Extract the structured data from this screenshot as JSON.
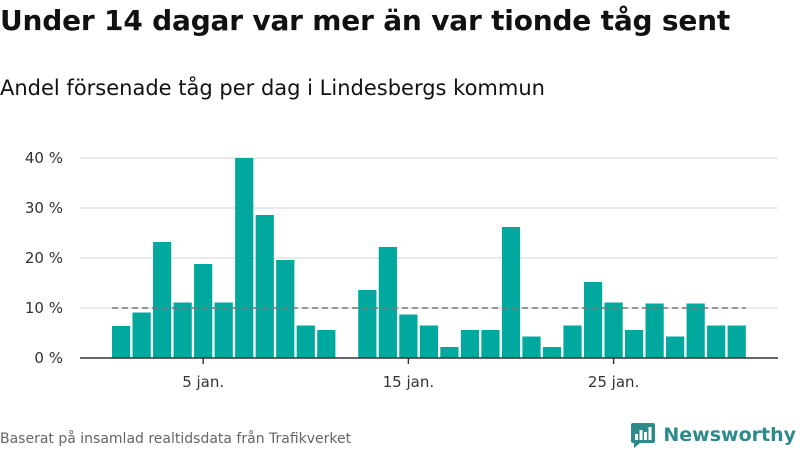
{
  "header": {
    "title": "Under 14 dagar var mer än var tionde tåg sent",
    "subtitle": "Andel försenade tåg per dag i Lindesbergs kommun"
  },
  "footer": {
    "source": "Baserat på insamlad realtidsdata från Trafikverket",
    "brand": "Newsworthy"
  },
  "colors": {
    "bar": "#00a89d",
    "reference_line": "#777777",
    "grid": "#dddddd",
    "axis": "#333333",
    "brand": "#2e8b8b"
  },
  "icons": {
    "brand_logo": "newsworthy-logo-icon"
  },
  "chart_data": {
    "type": "bar",
    "unit": "%",
    "ylim": [
      0,
      40
    ],
    "y_ticks": [
      {
        "value": 0,
        "label": "0 %"
      },
      {
        "value": 10,
        "label": "10 %"
      },
      {
        "value": 20,
        "label": "20 %"
      },
      {
        "value": 30,
        "label": "30 %"
      },
      {
        "value": 40,
        "label": "40 %"
      }
    ],
    "x_ticks": [
      {
        "day": 5,
        "label": "5 jan."
      },
      {
        "day": 15,
        "label": "15 jan."
      },
      {
        "day": 25,
        "label": "25 jan."
      }
    ],
    "days": [
      1,
      2,
      3,
      4,
      5,
      6,
      7,
      8,
      9,
      10,
      11,
      12,
      13,
      14,
      15,
      16,
      17,
      18,
      19,
      20,
      21,
      22,
      23,
      24,
      25,
      26,
      27,
      28,
      29,
      30,
      31,
      32
    ],
    "values": [
      6.4,
      9.1,
      23.2,
      11.1,
      18.8,
      11.1,
      40.0,
      28.6,
      19.6,
      6.5,
      5.6,
      null,
      13.6,
      22.2,
      8.7,
      6.5,
      2.2,
      5.6,
      5.6,
      26.2,
      4.3,
      2.2,
      6.5,
      15.2,
      11.1,
      5.6,
      10.9,
      4.3,
      10.9,
      6.5,
      6.5,
      null
    ],
    "reference_line": 10,
    "reference_line_span_days": [
      1,
      31
    ],
    "grid": true,
    "legend": "none"
  }
}
